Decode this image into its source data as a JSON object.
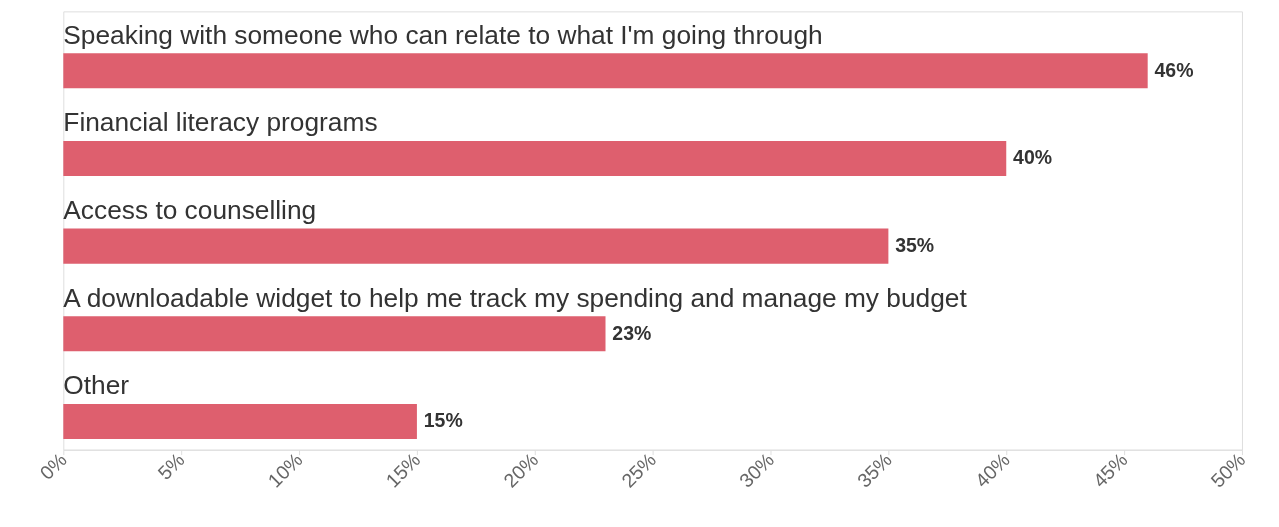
{
  "chart_data": {
    "type": "bar",
    "orientation": "horizontal",
    "categories": [
      "Speaking with someone who can relate to what I'm going through",
      "Financial literacy programs",
      "Access to counselling",
      "A downloadable widget to help me track my spending and manage my budget",
      "Other"
    ],
    "values": [
      46,
      40,
      35,
      23,
      15
    ],
    "value_labels": [
      "46%",
      "40%",
      "35%",
      "23%",
      "15%"
    ],
    "color": "#de5f6e",
    "xlim": [
      0,
      50
    ],
    "xticks": [
      {
        "value": 0,
        "label": "0%"
      },
      {
        "value": 5,
        "label": "5%"
      },
      {
        "value": 10,
        "label": "10%"
      },
      {
        "value": 15,
        "label": "15%"
      },
      {
        "value": 20,
        "label": "20%"
      },
      {
        "value": 25,
        "label": "25%"
      },
      {
        "value": 30,
        "label": "30%"
      },
      {
        "value": 35,
        "label": "35%"
      },
      {
        "value": 40,
        "label": "40%"
      },
      {
        "value": 45,
        "label": "45%"
      },
      {
        "value": 50,
        "label": "50%"
      }
    ],
    "grid": false
  }
}
